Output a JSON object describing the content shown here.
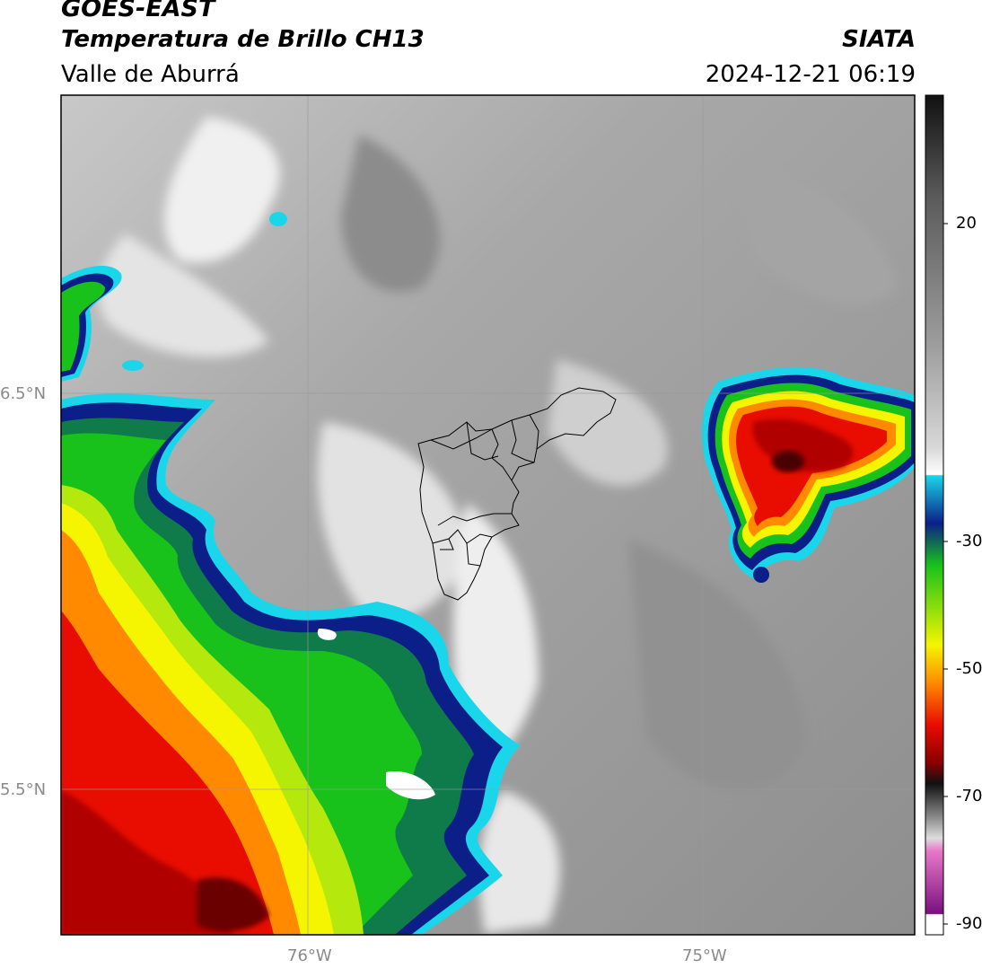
{
  "header": {
    "satellite": "GOES-EAST",
    "product": "Temperatura de Brillo CH13",
    "region": "Valle de Aburrá",
    "brand": "SIATA",
    "datetime": "2024-12-21 06:19"
  },
  "map": {
    "lat_labels": [
      "6.5°N",
      "5.5°N"
    ],
    "lon_labels": [
      "76°W",
      "75°W"
    ]
  },
  "colorbar": {
    "tick_labels": [
      "20",
      "-30",
      "-50",
      "-70",
      "-90"
    ],
    "palette": {
      "white": "#ffffff",
      "cyan": "#1ad6ea",
      "navy": "#0c1f88",
      "green": "#18c21a",
      "yellow": "#f5f500",
      "orange": "#ff8a00",
      "red": "#e80d00",
      "darkred": "#8a0000",
      "black": "#111111",
      "magenta": "#b21ca3"
    }
  }
}
